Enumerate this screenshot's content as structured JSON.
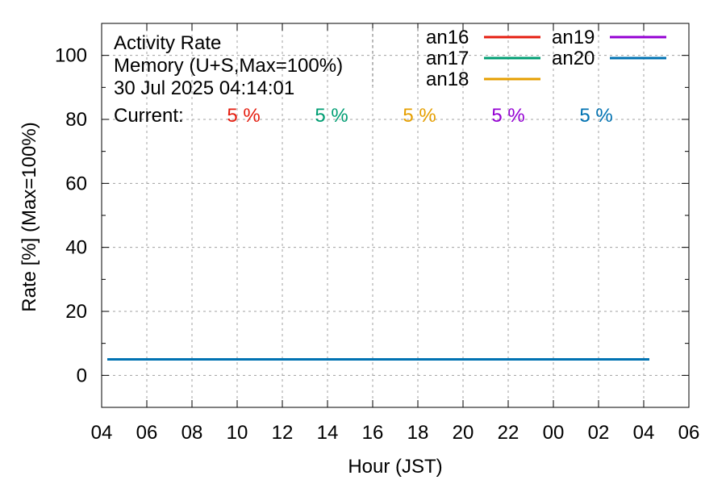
{
  "chart_data": {
    "type": "line",
    "info": {
      "title": "Activity Rate",
      "subtitle": "Memory (U+S,Max=100%)",
      "timestamp": "30 Jul 2025 04:14:01",
      "current_label": "Current:"
    },
    "xlabel": "Hour (JST)",
    "ylabel": "Rate [%]  (Max=100%)",
    "x_unit": "hours since 04:00 JST on 29 Jul 2025",
    "xlim": [
      0,
      26
    ],
    "ylim": [
      -10,
      110
    ],
    "x_ticks": [
      {
        "value": 0,
        "label": "04"
      },
      {
        "value": 2,
        "label": "06"
      },
      {
        "value": 4,
        "label": "08"
      },
      {
        "value": 6,
        "label": "10"
      },
      {
        "value": 8,
        "label": "12"
      },
      {
        "value": 10,
        "label": "14"
      },
      {
        "value": 12,
        "label": "16"
      },
      {
        "value": 14,
        "label": "18"
      },
      {
        "value": 16,
        "label": "20"
      },
      {
        "value": 18,
        "label": "22"
      },
      {
        "value": 20,
        "label": "00"
      },
      {
        "value": 22,
        "label": "02"
      },
      {
        "value": 24,
        "label": "04"
      },
      {
        "value": 26,
        "label": "06"
      }
    ],
    "y_ticks": [
      {
        "value": 0,
        "label": "0"
      },
      {
        "value": 20,
        "label": "20"
      },
      {
        "value": 40,
        "label": "40"
      },
      {
        "value": 60,
        "label": "60"
      },
      {
        "value": 80,
        "label": "80"
      },
      {
        "value": 100,
        "label": "100"
      }
    ],
    "grid": true,
    "legend_position": "top-right",
    "series": [
      {
        "name": "an16",
        "color": "#e51e10",
        "current": "5 %",
        "x": [
          0.25,
          24.25
        ],
        "y": [
          5,
          5
        ]
      },
      {
        "name": "an17",
        "color": "#009e73",
        "current": "5 %",
        "x": [
          0.25,
          24.25
        ],
        "y": [
          5,
          5
        ]
      },
      {
        "name": "an18",
        "color": "#e69f00",
        "current": "5 %",
        "x": [
          0.25,
          24.25
        ],
        "y": [
          5,
          5
        ]
      },
      {
        "name": "an19",
        "color": "#9400d3",
        "current": "5 %",
        "x": [
          0.25,
          24.25
        ],
        "y": [
          5,
          5
        ]
      },
      {
        "name": "an20",
        "color": "#0072b2",
        "current": "5 %",
        "x": [
          0.25,
          24.25
        ],
        "y": [
          5,
          5
        ]
      }
    ]
  }
}
